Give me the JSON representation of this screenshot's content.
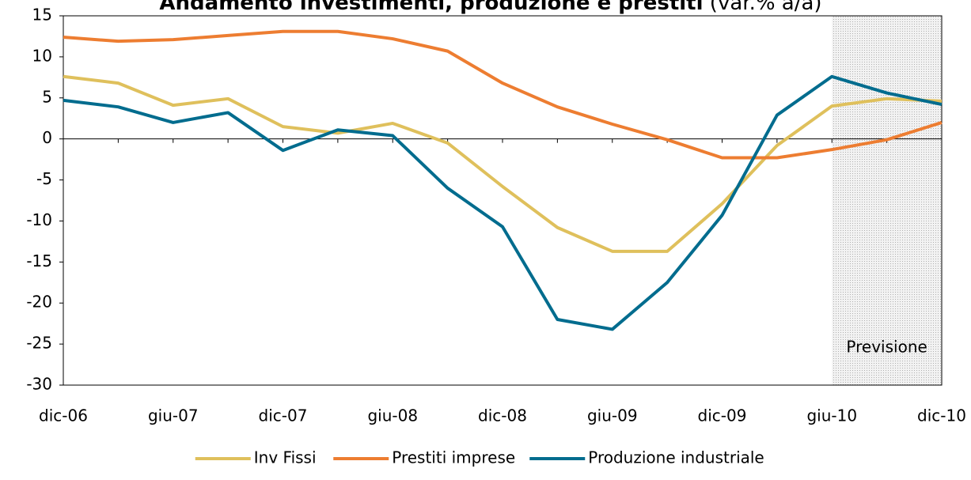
{
  "chart_data": {
    "type": "line",
    "title": "Andamento investimenti, produzione e prestiti",
    "subtitle": "(var.% a/a)",
    "categories": [
      "dic-06",
      null,
      "giu-07",
      null,
      "dic-07",
      null,
      "giu-08",
      null,
      "dic-08",
      null,
      "giu-09",
      null,
      "dic-09",
      null,
      "giu-10",
      null,
      "dic-10"
    ],
    "series": [
      {
        "name": "Inv Fissi",
        "color": "#dfc05c",
        "values": [
          7.6,
          6.8,
          4.1,
          4.9,
          1.5,
          0.7,
          1.9,
          -0.5,
          -5.8,
          -10.8,
          -13.7,
          -13.7,
          -7.9,
          -0.8,
          4.0,
          4.9,
          4.6
        ]
      },
      {
        "name": "Prestiti imprese",
        "color": "#ed7d31",
        "values": [
          12.4,
          11.9,
          12.1,
          12.6,
          13.1,
          13.1,
          12.2,
          10.7,
          6.8,
          3.9,
          1.8,
          -0.1,
          -2.3,
          -2.3,
          -1.3,
          -0.1,
          2.0
        ]
      },
      {
        "name": "Produzione industriale",
        "color": "#006c8e",
        "values": [
          4.7,
          3.9,
          2.0,
          3.2,
          -1.4,
          1.1,
          0.4,
          -6.0,
          -10.7,
          -22.0,
          -23.2,
          -17.5,
          -9.3,
          2.9,
          7.6,
          5.6,
          4.2
        ]
      }
    ],
    "forecast": {
      "label": "Previsione",
      "start": "giu-10",
      "end": "dic-10"
    },
    "ylim": [
      -30,
      15
    ],
    "yticks": [
      -30,
      -25,
      -20,
      -15,
      -10,
      -5,
      0,
      5,
      10,
      15
    ],
    "legend": "bottom"
  }
}
